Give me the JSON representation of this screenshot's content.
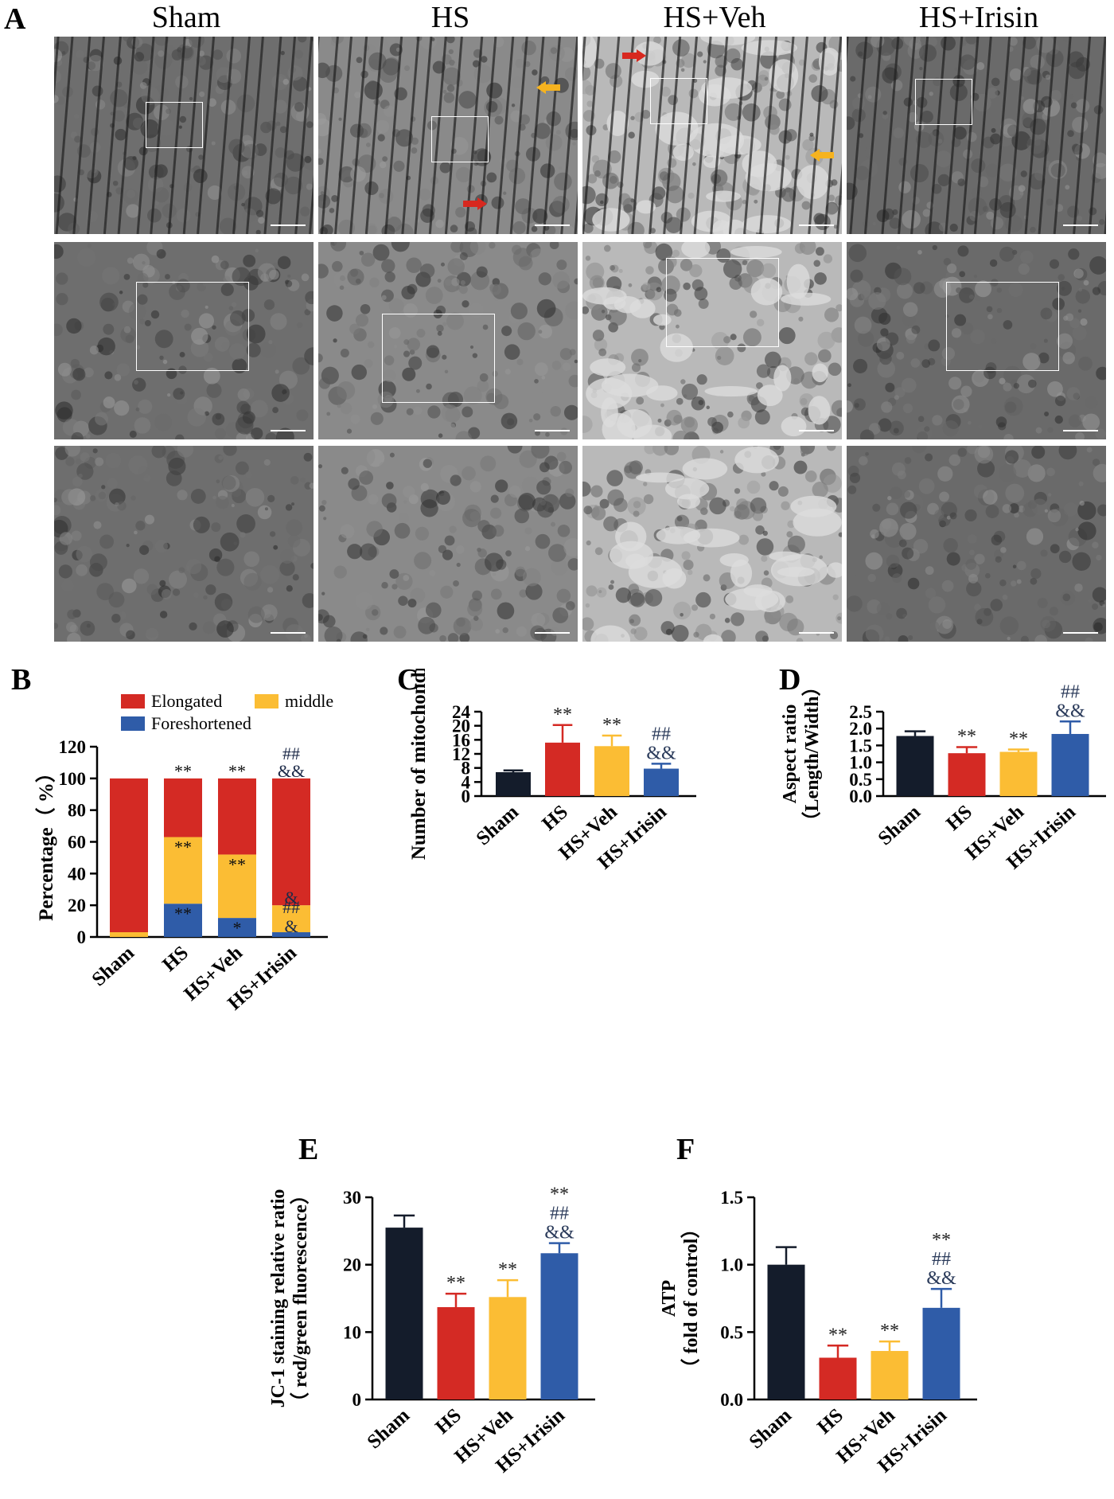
{
  "panel_letters": {
    "A": "A",
    "B": "B",
    "C": "C",
    "D": "D",
    "E": "E",
    "F": "F"
  },
  "micrograph_columns": [
    "Sham",
    "HS",
    "HS+Veh",
    "HS+Irisin"
  ],
  "colors": {
    "sham": "#141c2b",
    "hs": "#d42a24",
    "veh": "#fbbd34",
    "irisin": "#2f5ca8",
    "elongated": "#d42a24",
    "middle": "#fbbd34",
    "foreshortened": "#2f5ca8",
    "arrow_red": "#d8281f",
    "arrow_yellow": "#f6b31f"
  },
  "chart_data": [
    {
      "id": "B",
      "type": "bar",
      "stacked": true,
      "categories": [
        "Sham",
        "HS",
        "HS+Veh",
        "HS+Irisin"
      ],
      "ylabel": "Percentage（ %）",
      "ylim": [
        0,
        120
      ],
      "yticks": [
        0,
        20,
        40,
        60,
        80,
        100,
        120
      ],
      "legend": [
        "Elongated",
        "middle",
        "Foreshortened"
      ],
      "series": [
        {
          "name": "Foreshortened",
          "values": [
            0,
            21,
            12,
            3
          ]
        },
        {
          "name": "middle",
          "values": [
            3,
            42,
            40,
            17
          ]
        },
        {
          "name": "Elongated",
          "values": [
            97,
            37,
            48,
            80
          ]
        }
      ],
      "annotations": [
        {
          "category": "HS",
          "level": 100,
          "text": "**"
        },
        {
          "category": "HS+Veh",
          "level": 100,
          "text": "**"
        },
        {
          "category": "HS+Irisin",
          "level": 100,
          "text": "##"
        },
        {
          "category": "HS+Irisin",
          "level": 100,
          "text": "&&"
        },
        {
          "category": "HS",
          "level": 63,
          "text": "**"
        },
        {
          "category": "HS+Veh",
          "level": 52,
          "text": "**"
        },
        {
          "category": "HS+Irisin",
          "level": 20,
          "text": "&"
        },
        {
          "category": "HS",
          "level": 21,
          "text": "**"
        },
        {
          "category": "HS+Veh",
          "level": 12,
          "text": "*"
        },
        {
          "category": "HS+Irisin",
          "level": 3,
          "text": "##"
        },
        {
          "category": "HS+Irisin",
          "level": 3,
          "text": "&"
        }
      ]
    },
    {
      "id": "C",
      "type": "bar",
      "categories": [
        "Sham",
        "HS",
        "HS+Veh",
        "HS+Irisin"
      ],
      "values": [
        6.8,
        15.2,
        14.2,
        7.8
      ],
      "errors": [
        0.5,
        5.0,
        3.0,
        1.4
      ],
      "ylabel": "Number of mitochondria",
      "ylim": [
        0,
        24
      ],
      "yticks": [
        0,
        4,
        8,
        12,
        16,
        20,
        24
      ],
      "significance": [
        [],
        [
          "**"
        ],
        [
          "**"
        ],
        [
          "##",
          "&&"
        ]
      ]
    },
    {
      "id": "D",
      "type": "bar",
      "categories": [
        "Sham",
        "HS",
        "HS+Veh",
        "HS+Irisin"
      ],
      "values": [
        1.78,
        1.27,
        1.31,
        1.84
      ],
      "errors": [
        0.14,
        0.18,
        0.07,
        0.37
      ],
      "ylabel": "Aspect ratio",
      "ylabel2": "（Length/Width）",
      "ylim": [
        0,
        2.5
      ],
      "yticks": [
        "0.0",
        "0.5",
        "1.0",
        "1.5",
        "2.0",
        "2.5"
      ],
      "significance": [
        [],
        [
          "**"
        ],
        [
          "**"
        ],
        [
          "##",
          "&&"
        ]
      ]
    },
    {
      "id": "E",
      "type": "bar",
      "categories": [
        "Sham",
        "HS",
        "HS+Veh",
        "HS+Irisin"
      ],
      "values": [
        25.5,
        13.7,
        15.2,
        21.7
      ],
      "errors": [
        1.8,
        2.0,
        2.5,
        1.5
      ],
      "ylabel": "JC-1 staining relative ratio",
      "ylabel2": "（ red/green fluorescence）",
      "ylim": [
        0,
        30
      ],
      "yticks": [
        "0",
        "10",
        "20",
        "30"
      ],
      "significance": [
        [],
        [
          "**"
        ],
        [
          "**"
        ],
        [
          "**",
          "##",
          "&&"
        ]
      ]
    },
    {
      "id": "F",
      "type": "bar",
      "categories": [
        "Sham",
        "HS",
        "HS+Veh",
        "HS+Irisin"
      ],
      "values": [
        1.0,
        0.31,
        0.36,
        0.68
      ],
      "errors": [
        0.13,
        0.09,
        0.07,
        0.14
      ],
      "ylabel": "ATP",
      "ylabel2": "（ fold of control）",
      "ylim": [
        0,
        1.5
      ],
      "yticks": [
        "0.0",
        "0.5",
        "1.0",
        "1.5"
      ],
      "significance": [
        [],
        [
          "**"
        ],
        [
          "**"
        ],
        [
          "**",
          "##",
          "&&"
        ]
      ]
    }
  ]
}
